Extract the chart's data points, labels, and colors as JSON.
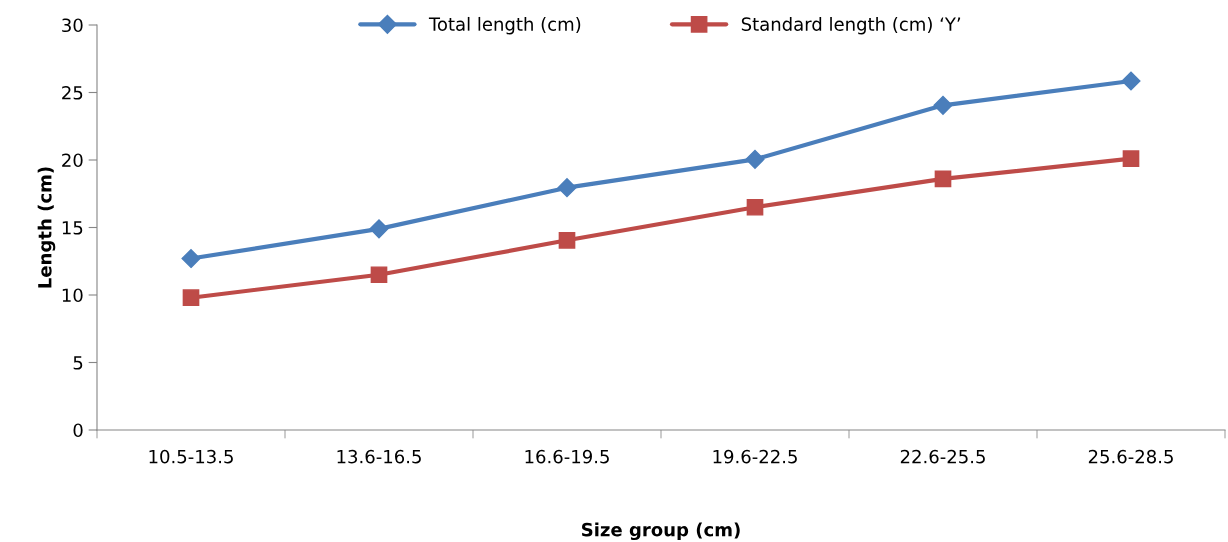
{
  "chart_data": {
    "type": "line",
    "xlabel": "Size group (cm)",
    "ylabel": "Length (cm)",
    "categories": [
      "10.5-13.5",
      "13.6-16.5",
      "16.6-19.5",
      "19.6-22.5",
      "22.6-25.5",
      "25.6-28.5"
    ],
    "series": [
      {
        "name": "Total length (cm)",
        "color": "#4a7ebb",
        "marker": "diamond",
        "values": [
          12.7,
          14.9,
          17.95,
          20.05,
          24.05,
          25.85
        ]
      },
      {
        "name": "Standard length (cm) ‘Y’",
        "color": "#be4b48",
        "marker": "square",
        "values": [
          9.8,
          11.5,
          14.05,
          16.5,
          18.6,
          20.1
        ]
      }
    ],
    "ylim": [
      0,
      30
    ],
    "yticks": [
      0,
      5,
      10,
      15,
      20,
      25,
      30
    ],
    "grid": false,
    "legend": "top",
    "line_style": "solid"
  }
}
